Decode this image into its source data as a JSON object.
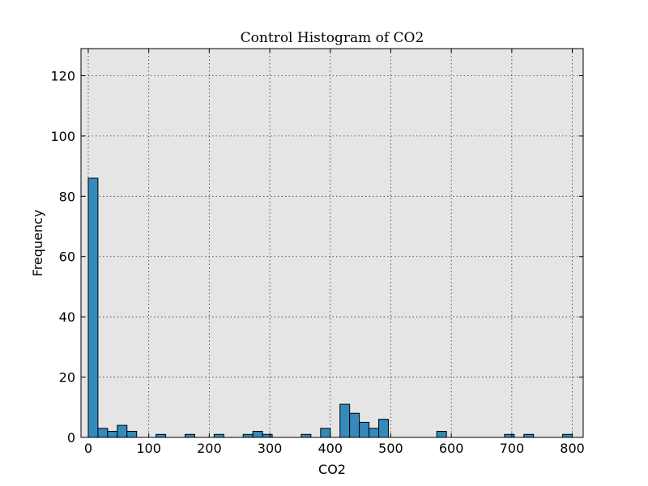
{
  "chart_data": {
    "type": "bar",
    "title": "Control Histogram of CO2",
    "xlabel": "CO2",
    "ylabel": "Frequency",
    "xlim": [
      -12,
      818
    ],
    "ylim": [
      0,
      129
    ],
    "xticks": [
      0,
      100,
      200,
      300,
      400,
      500,
      600,
      700,
      800
    ],
    "yticks": [
      0,
      20,
      40,
      60,
      80,
      100,
      120
    ],
    "grid": true,
    "bins": [
      {
        "x0": 0,
        "x1": 16,
        "value": 86
      },
      {
        "x0": 16,
        "x1": 32,
        "value": 3
      },
      {
        "x0": 32,
        "x1": 48,
        "value": 2
      },
      {
        "x0": 48,
        "x1": 64,
        "value": 4
      },
      {
        "x0": 64,
        "x1": 80,
        "value": 2
      },
      {
        "x0": 112,
        "x1": 128,
        "value": 1
      },
      {
        "x0": 160,
        "x1": 176,
        "value": 1
      },
      {
        "x0": 208,
        "x1": 224,
        "value": 1
      },
      {
        "x0": 256,
        "x1": 272,
        "value": 1
      },
      {
        "x0": 272,
        "x1": 288,
        "value": 2
      },
      {
        "x0": 288,
        "x1": 304,
        "value": 1
      },
      {
        "x0": 352,
        "x1": 368,
        "value": 1
      },
      {
        "x0": 384,
        "x1": 400,
        "value": 3
      },
      {
        "x0": 416,
        "x1": 432,
        "value": 11
      },
      {
        "x0": 432,
        "x1": 448,
        "value": 8
      },
      {
        "x0": 448,
        "x1": 464,
        "value": 5
      },
      {
        "x0": 464,
        "x1": 480,
        "value": 3
      },
      {
        "x0": 480,
        "x1": 496,
        "value": 6
      },
      {
        "x0": 576,
        "x1": 592,
        "value": 2
      },
      {
        "x0": 688,
        "x1": 704,
        "value": 1
      },
      {
        "x0": 720,
        "x1": 736,
        "value": 1
      },
      {
        "x0": 784,
        "x1": 800,
        "value": 1
      }
    ]
  }
}
